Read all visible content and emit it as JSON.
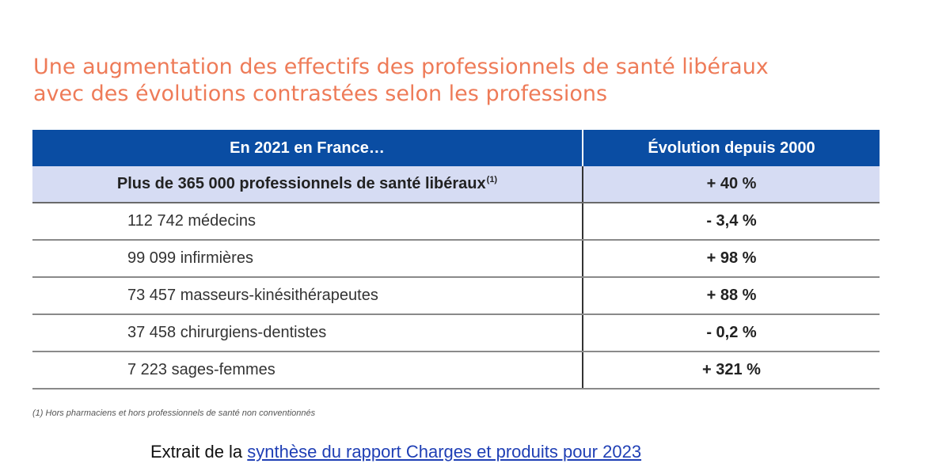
{
  "title": {
    "line1": "Une augmentation des effectifs des professionnels de santé libéraux",
    "line2": "avec des évolutions contrastées selon les professions"
  },
  "table": {
    "headers": [
      "En 2021 en France…",
      "Évolution depuis 2000"
    ],
    "total": {
      "label": "Plus de 365 000 professionnels de santé libéraux",
      "footnote_ref": "(1)",
      "value": "+ 40 %"
    },
    "rows": [
      {
        "label": "112 742 médecins",
        "value": "- 3,4 %"
      },
      {
        "label": "99 099 infirmières",
        "value": "+ 98 %"
      },
      {
        "label": "73 457 masseurs-kinésithérapeutes",
        "value": "+ 88 %"
      },
      {
        "label": "37 458 chirurgiens-dentistes",
        "value": "- 0,2 %"
      },
      {
        "label": "7 223 sages-femmes",
        "value": "+ 321 %"
      }
    ]
  },
  "footnote": {
    "ref": "(1)",
    "text": "Hors pharmaciens et hors professionnels de santé non conventionnés"
  },
  "source": {
    "prefix": "Extrait de la",
    "link_text": "synthèse du rapport Charges et produits pour 2023"
  },
  "colors": {
    "title": "#ee7b58",
    "header_bg": "#0a4da3",
    "total_bg": "#d6dcf3",
    "link": "#1f3fb5"
  }
}
